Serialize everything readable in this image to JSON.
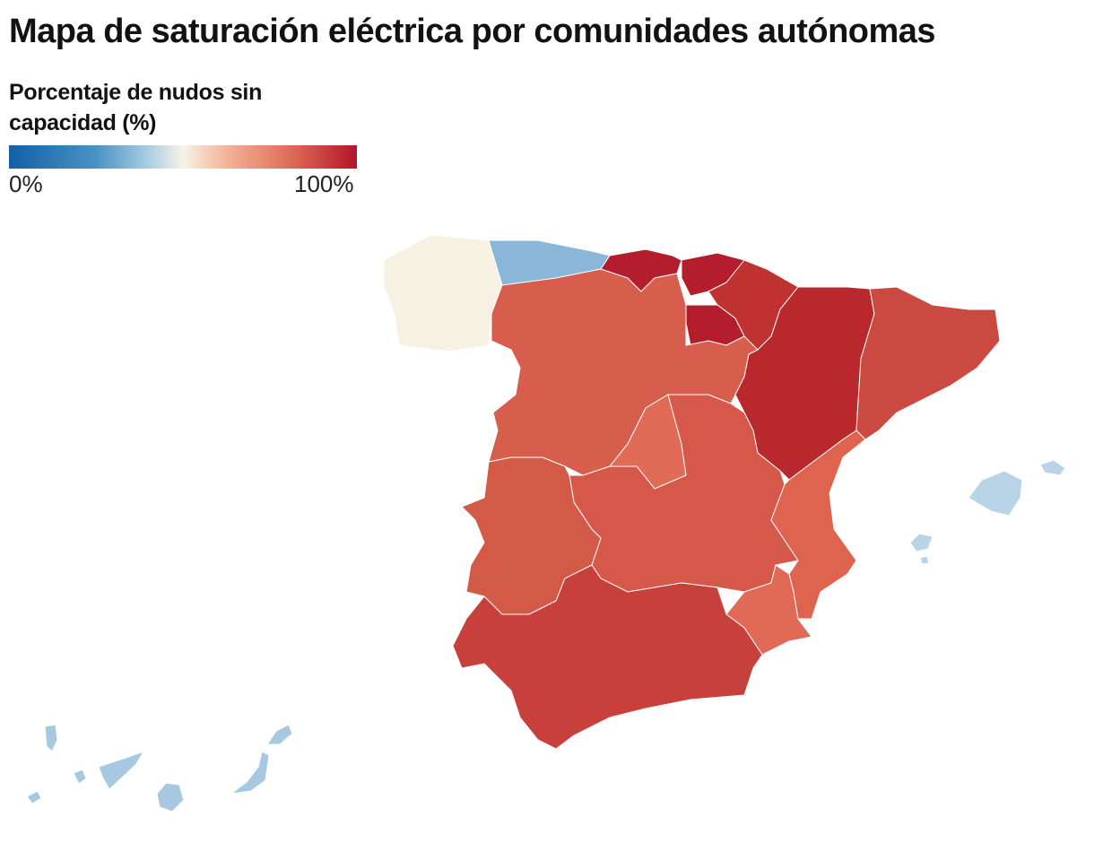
{
  "title": "Mapa de saturación eléctrica por comunidades autónomas",
  "legend": {
    "title": "Porcentaje de nudos sin capacidad (%)",
    "min_label": "0%",
    "max_label": "100%",
    "scale_colors": [
      "#1360a6",
      "#a9cde3",
      "#f7f3e6",
      "#e0705a",
      "#b31529"
    ]
  },
  "region_colors": {
    "galicia": "#f7f1e4",
    "asturias": "#8ab7d8",
    "cantabria": "#b31d2c",
    "pais_vasco": "#b31d2c",
    "navarra": "#c0322f",
    "la_rioja": "#b31d2c",
    "aragon": "#b8282c",
    "cataluna": "#ca4940",
    "castilla_y_leon": "#d75e4c",
    "madrid": "#e06b56",
    "castilla_la_mancha": "#d5584a",
    "extremadura": "#d45a48",
    "comunidad_valenciana": "#de6450",
    "murcia": "#e06a56",
    "andalucia": "#c8403b",
    "baleares": "#b9d4e6",
    "canarias": "#a6c9e1"
  }
}
